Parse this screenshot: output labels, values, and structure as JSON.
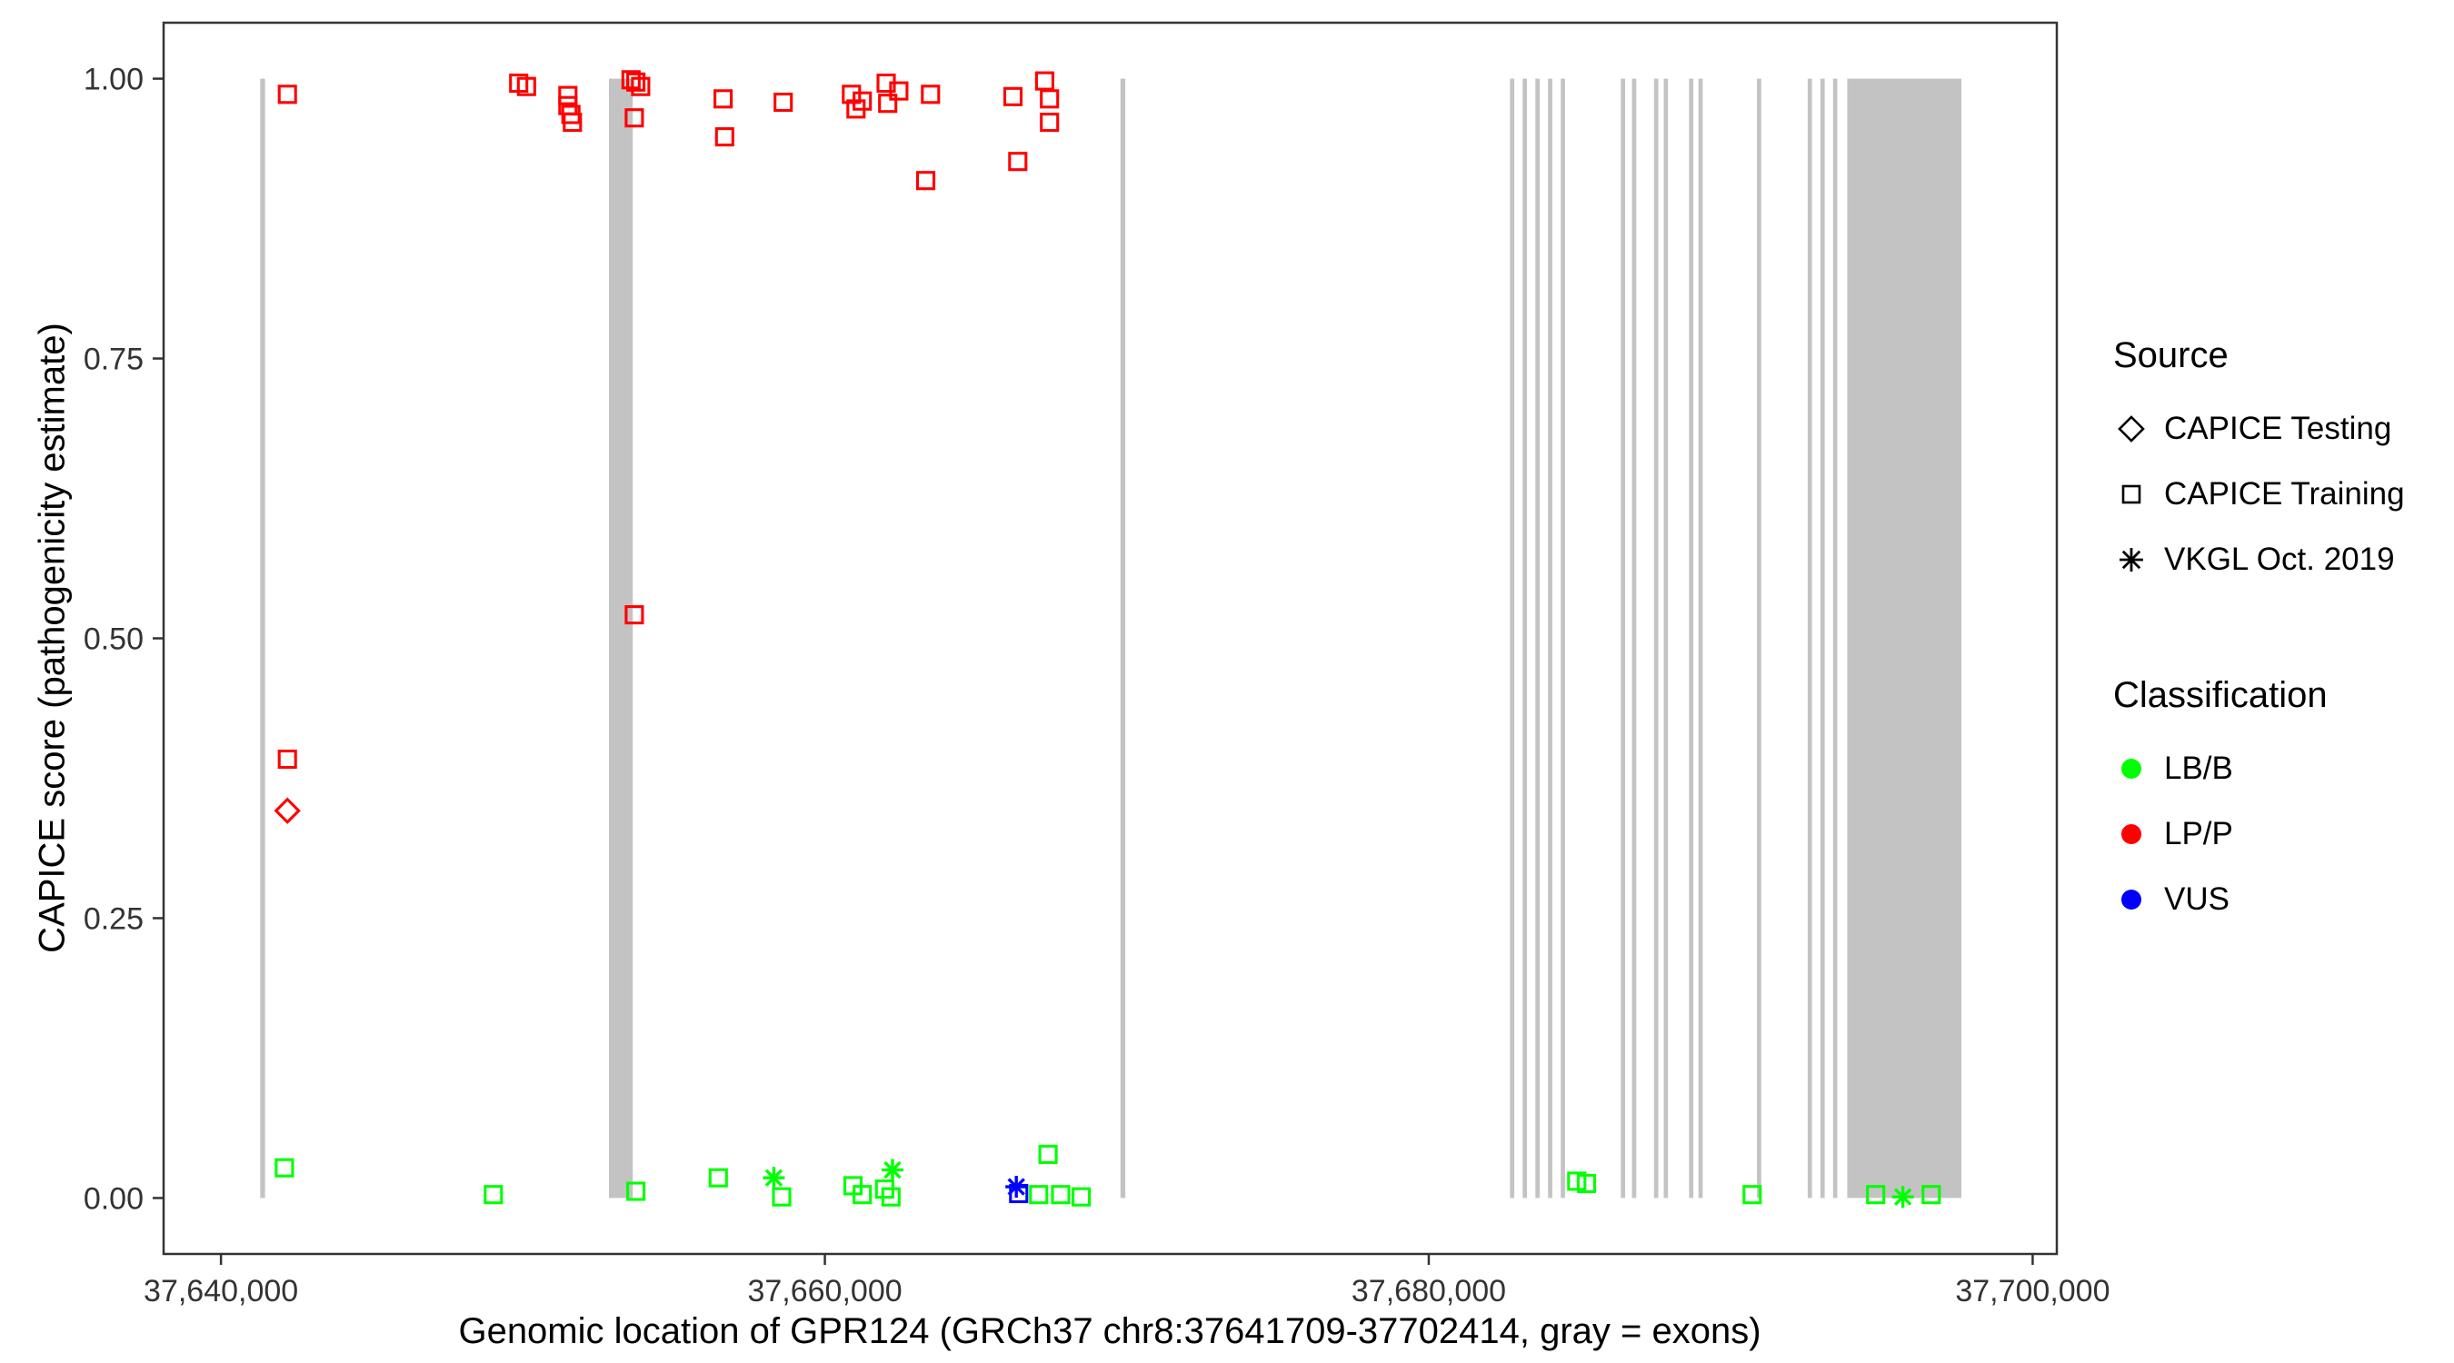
{
  "chart_data": {
    "type": "scatter",
    "title": "",
    "xlabel": "Genomic location of GPR124 (GRCh37 chr8:37641709-37702414, gray = exons)",
    "ylabel": "CAPICE score (pathogenicity estimate)",
    "xlim": [
      37638100,
      37700800
    ],
    "ylim": [
      -0.05,
      1.05
    ],
    "grid": false,
    "legend_position": "right",
    "colors": {
      "exon": "#C3C3C3",
      "border": "#333333",
      "tick": "#333333",
      "lbb": "#00FF00",
      "lpp": "#FF0000",
      "vus": "#0000FF"
    },
    "x_ticks": [
      {
        "value": 37640000,
        "label": "37,640,000"
      },
      {
        "value": 37660000,
        "label": "37,660,000"
      },
      {
        "value": 37680000,
        "label": "37,680,000"
      },
      {
        "value": 37700000,
        "label": "37,700,000"
      }
    ],
    "y_ticks": [
      {
        "value": 0.0,
        "label": "0.00"
      },
      {
        "value": 0.25,
        "label": "0.25"
      },
      {
        "value": 0.5,
        "label": "0.50"
      },
      {
        "value": 0.75,
        "label": "0.75"
      },
      {
        "value": 1.0,
        "label": "1.00"
      }
    ],
    "exons": [
      [
        37641300,
        37641460
      ],
      [
        37652850,
        37653640
      ],
      [
        37669790,
        37669950
      ],
      [
        37682690,
        37682830
      ],
      [
        37683110,
        37683250
      ],
      [
        37683530,
        37683670
      ],
      [
        37683950,
        37684090
      ],
      [
        37684370,
        37684510
      ],
      [
        37686360,
        37686500
      ],
      [
        37686730,
        37686870
      ],
      [
        37687460,
        37687600
      ],
      [
        37687780,
        37687920
      ],
      [
        37688620,
        37688760
      ],
      [
        37688930,
        37689070
      ],
      [
        37690870,
        37691010
      ],
      [
        37692550,
        37692690
      ],
      [
        37692970,
        37693110
      ],
      [
        37693390,
        37693530
      ],
      [
        37693860,
        37697640
      ]
    ],
    "legend": {
      "source": {
        "title": "Source",
        "items": [
          {
            "shape": "diamond",
            "label": "CAPICE Testing"
          },
          {
            "shape": "square",
            "label": "CAPICE Training"
          },
          {
            "shape": "asterisk",
            "label": "VKGL Oct. 2019"
          }
        ]
      },
      "classification": {
        "title": "Classification",
        "items": [
          {
            "label": "LB/B",
            "color": "#00FF00"
          },
          {
            "label": "LP/P",
            "color": "#FF0000"
          },
          {
            "label": "VUS",
            "color": "#0000FF"
          }
        ]
      }
    },
    "series": [
      {
        "name": "CAPICE Training LP/P",
        "source": "CAPICE Training",
        "classification": "LP/P",
        "shape": "square",
        "color": "#FF0000",
        "points": [
          [
            37642200,
            0.986
          ],
          [
            37642200,
            0.392
          ],
          [
            37649860,
            0.996
          ],
          [
            37650120,
            0.993
          ],
          [
            37651490,
            0.985
          ],
          [
            37651490,
            0.976
          ],
          [
            37651590,
            0.968
          ],
          [
            37651640,
            0.961
          ],
          [
            37653580,
            0.999
          ],
          [
            37653740,
            0.997
          ],
          [
            37653900,
            0.993
          ],
          [
            37653690,
            0.965
          ],
          [
            37653690,
            0.521
          ],
          [
            37656630,
            0.982
          ],
          [
            37656680,
            0.948
          ],
          [
            37658620,
            0.979
          ],
          [
            37660880,
            0.986
          ],
          [
            37661030,
            0.973
          ],
          [
            37661240,
            0.98
          ],
          [
            37662030,
            0.996
          ],
          [
            37662080,
            0.978
          ],
          [
            37662450,
            0.989
          ],
          [
            37663340,
            0.909
          ],
          [
            37663500,
            0.986
          ],
          [
            37666230,
            0.984
          ],
          [
            37666390,
            0.926
          ],
          [
            37667280,
            0.998
          ],
          [
            37667440,
            0.982
          ],
          [
            37667440,
            0.961
          ]
        ]
      },
      {
        "name": "CAPICE Testing LP/P",
        "source": "CAPICE Testing",
        "classification": "LP/P",
        "shape": "diamond",
        "color": "#FF0000",
        "points": [
          [
            37642200,
            0.346
          ]
        ]
      },
      {
        "name": "CAPICE Training LB/B",
        "source": "CAPICE Training",
        "classification": "LB/B",
        "shape": "square",
        "color": "#00FF00",
        "points": [
          [
            37642100,
            0.027
          ],
          [
            37649020,
            0.003
          ],
          [
            37653740,
            0.006
          ],
          [
            37656470,
            0.018
          ],
          [
            37658570,
            0.001
          ],
          [
            37660930,
            0.011
          ],
          [
            37661240,
            0.003
          ],
          [
            37661980,
            0.008
          ],
          [
            37662190,
            0.001
          ],
          [
            37667390,
            0.039
          ],
          [
            37667080,
            0.003
          ],
          [
            37667810,
            0.003
          ],
          [
            37668490,
            0.001
          ],
          [
            37684900,
            0.015
          ],
          [
            37685220,
            0.013
          ],
          [
            37690710,
            0.003
          ],
          [
            37694800,
            0.003
          ],
          [
            37696640,
            0.003
          ]
        ]
      },
      {
        "name": "VKGL Oct. 2019 LB/B",
        "source": "VKGL Oct. 2019",
        "classification": "LB/B",
        "shape": "asterisk",
        "color": "#00FF00",
        "points": [
          [
            37658310,
            0.018
          ],
          [
            37662240,
            0.025
          ],
          [
            37695700,
            0.001
          ]
        ]
      },
      {
        "name": "CAPICE Training VUS",
        "source": "CAPICE Training",
        "classification": "VUS",
        "shape": "square",
        "color": "#0000FF",
        "points": [
          [
            37666420,
            0.004
          ]
        ]
      },
      {
        "name": "VKGL Oct. 2019 VUS",
        "source": "VKGL Oct. 2019",
        "classification": "VUS",
        "shape": "asterisk",
        "color": "#0000FF",
        "points": [
          [
            37666340,
            0.01
          ]
        ]
      }
    ]
  }
}
